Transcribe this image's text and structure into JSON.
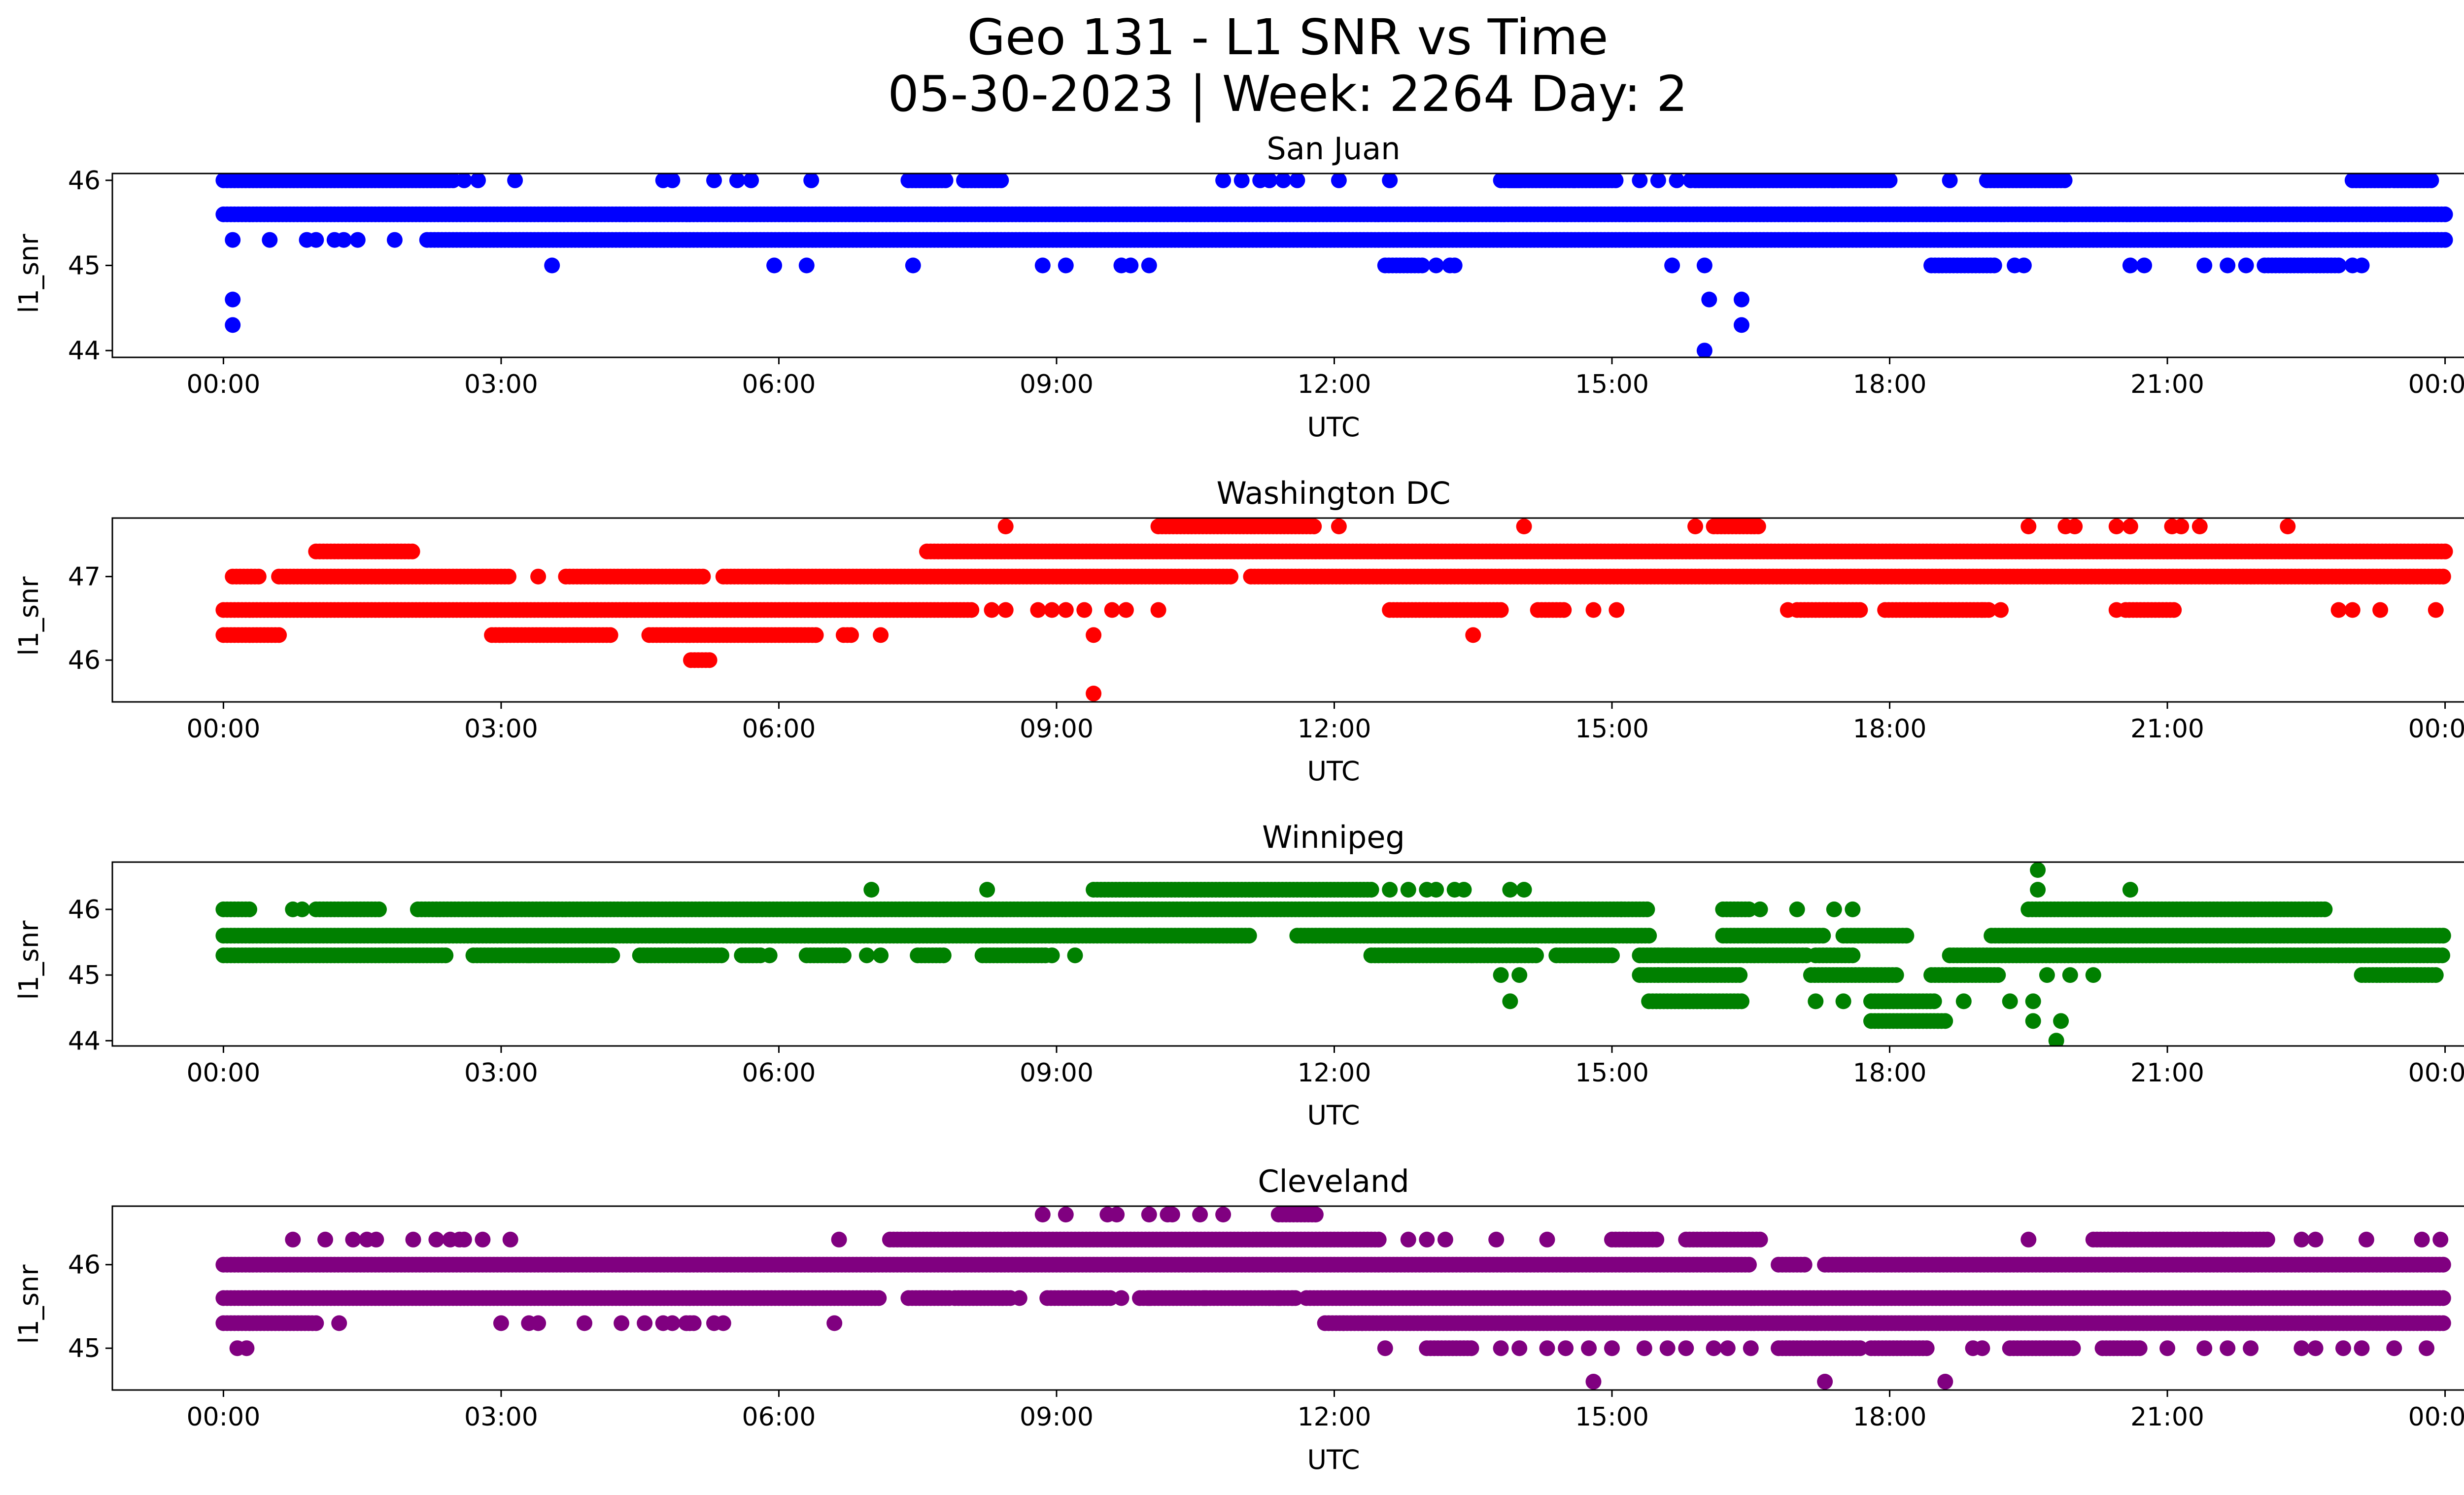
{
  "figure": {
    "title_line1": "Geo 131 - L1 SNR vs Time",
    "title_line2": "05-30-2023 | Week: 2264 Day: 2"
  },
  "chart_data": [
    {
      "type": "scatter",
      "title": "San Juan",
      "xlabel": "UTC",
      "ylabel": "l1_snr",
      "color": "#0000ff",
      "x_unit": "hours UTC (0-24)",
      "xlim": [
        -1.2,
        25.2
      ],
      "ylim": [
        43.92,
        46.08
      ],
      "xticks": [
        0,
        3,
        6,
        9,
        12,
        15,
        18,
        21,
        24
      ],
      "xtick_labels": [
        "00:00",
        "03:00",
        "06:00",
        "09:00",
        "12:00",
        "15:00",
        "18:00",
        "21:00",
        "00:00"
      ],
      "yticks": [
        44,
        45,
        46
      ],
      "ytick_labels": [
        "44",
        "45",
        "46"
      ],
      "series": [
        {
          "y": 45.6,
          "segments": [
            [
              0,
              24
            ]
          ],
          "isolated": []
        },
        {
          "y": 45.3,
          "segments": [
            [
              2.2,
              24
            ]
          ],
          "isolated": [
            0.1,
            0.5,
            0.9,
            1.0,
            1.2,
            1.3,
            1.45,
            1.85
          ]
        },
        {
          "y": 46.0,
          "segments": [
            [
              0,
              2.5
            ],
            [
              7.4,
              7.8
            ],
            [
              8.0,
              8.4
            ],
            [
              13.8,
              14.0
            ],
            [
              13.9,
              14.6
            ],
            [
              14.6,
              15.05
            ],
            [
              15.9,
              17.4
            ],
            [
              17.4,
              18.0
            ],
            [
              19.05,
              19.9
            ],
            [
              23.0,
              23.4
            ],
            [
              23.45,
              23.85
            ]
          ],
          "isolated": [
            2.6,
            2.75,
            3.15,
            4.75,
            4.85,
            5.3,
            5.55,
            5.7,
            6.35,
            10.8,
            11.0,
            11.2,
            11.3,
            11.45,
            11.6,
            12.05,
            12.6,
            15.3,
            15.5,
            15.7,
            15.85,
            18.65
          ]
        },
        {
          "y": 45.0,
          "segments": [
            [
              12.55,
              12.95
            ],
            [
              18.45,
              19.15
            ],
            [
              22.05,
              22.85
            ]
          ],
          "isolated": [
            3.55,
            5.95,
            6.3,
            7.45,
            8.85,
            9.1,
            9.7,
            9.8,
            10.0,
            13.1,
            13.25,
            13.3,
            15.65,
            16.0,
            19.35,
            19.45,
            20.6,
            20.75,
            21.4,
            21.65,
            21.85,
            22.45,
            23.0,
            23.1
          ]
        },
        {
          "y": 44.6,
          "segments": [],
          "isolated": [
            0.1,
            16.05,
            16.4
          ]
        },
        {
          "y": 44.3,
          "segments": [],
          "isolated": [
            0.1,
            16.4
          ]
        },
        {
          "y": 44.0,
          "segments": [],
          "isolated": [
            16.0
          ]
        }
      ]
    },
    {
      "type": "scatter",
      "title": "Washington DC",
      "xlabel": "UTC",
      "ylabel": "l1_snr",
      "color": "#ff0000",
      "x_unit": "hours UTC (0-24)",
      "xlim": [
        -1.2,
        25.2
      ],
      "ylim": [
        45.5,
        47.7
      ],
      "xticks": [
        0,
        3,
        6,
        9,
        12,
        15,
        18,
        21,
        24
      ],
      "xtick_labels": [
        "00:00",
        "03:00",
        "06:00",
        "09:00",
        "12:00",
        "15:00",
        "18:00",
        "21:00",
        "00:00"
      ],
      "yticks": [
        46,
        47
      ],
      "ytick_labels": [
        "46",
        "47"
      ],
      "series": [
        {
          "y": 46.6,
          "segments": [
            [
              0,
              8.1
            ],
            [
              12.6,
              13.8
            ],
            [
              14.2,
              14.5
            ],
            [
              17.0,
              17.7
            ],
            [
              17.95,
              19.1
            ],
            [
              20.55,
              21.1
            ]
          ],
          "isolated": [
            8.3,
            8.45,
            8.8,
            8.95,
            9.1,
            9.3,
            9.6,
            9.75,
            10.1,
            14.8,
            15.05,
            16.9,
            19.0,
            19.2,
            20.45,
            22.85,
            23.0,
            23.3,
            23.9
          ]
        },
        {
          "y": 47.0,
          "segments": [
            [
              0.1,
              0.4
            ],
            [
              0.6,
              3.1
            ],
            [
              3.7,
              5.2
            ],
            [
              5.4,
              6.0
            ],
            [
              6.0,
              10.9
            ],
            [
              11.1,
              24
            ]
          ],
          "isolated": [
            3.4,
            6.1
          ]
        },
        {
          "y": 46.3,
          "segments": [
            [
              0,
              0.6
            ],
            [
              2.9,
              4.2
            ],
            [
              4.6,
              6.4
            ],
            [
              6.7,
              6.8
            ]
          ],
          "isolated": [
            7.1,
            9.4,
            13.5
          ]
        },
        {
          "y": 47.3,
          "segments": [
            [
              1.0,
              2.05
            ],
            [
              7.6,
              24
            ]
          ],
          "isolated": []
        },
        {
          "y": 47.6,
          "segments": [
            [
              10.1,
              11.8
            ],
            [
              16.1,
              16.6
            ]
          ],
          "isolated": [
            8.45,
            12.05,
            14.05,
            15.9,
            19.5,
            19.9,
            20.0,
            20.45,
            20.6,
            21.05,
            21.15,
            21.35,
            22.3
          ]
        },
        {
          "y": 46.0,
          "segments": [
            [
              5.05,
              5.25
            ]
          ],
          "isolated": []
        },
        {
          "y": 45.6,
          "segments": [],
          "isolated": [
            9.4
          ]
        }
      ]
    },
    {
      "type": "scatter",
      "title": "Winnipeg",
      "xlabel": "UTC",
      "ylabel": "l1_snr",
      "color": "#008000",
      "x_unit": "hours UTC (0-24)",
      "xlim": [
        -1.2,
        25.2
      ],
      "ylim": [
        43.92,
        46.72
      ],
      "xticks": [
        0,
        3,
        6,
        9,
        12,
        15,
        18,
        21,
        24
      ],
      "xtick_labels": [
        "00:00",
        "03:00",
        "06:00",
        "09:00",
        "12:00",
        "15:00",
        "18:00",
        "21:00",
        "00:00"
      ],
      "yticks": [
        44,
        45,
        46
      ],
      "ytick_labels": [
        "44",
        "45",
        "46"
      ],
      "series": [
        {
          "y": 45.6,
          "segments": [
            [
              0,
              10.0
            ],
            [
              10.0,
              11.1
            ],
            [
              11.6,
              15.4
            ],
            [
              16.2,
              17.3
            ],
            [
              17.5,
              18.2
            ],
            [
              19.1,
              24
            ]
          ],
          "isolated": []
        },
        {
          "y": 45.3,
          "segments": [
            [
              0,
              2.4
            ],
            [
              2.7,
              3.0
            ],
            [
              3.0,
              4.2
            ],
            [
              4.5,
              5.4
            ],
            [
              5.6,
              5.8
            ],
            [
              6.3,
              6.7
            ],
            [
              7.5,
              7.8
            ],
            [
              8.2,
              8.9
            ],
            [
              12.4,
              13.5
            ],
            [
              13.5,
              14.2
            ],
            [
              14.4,
              15.0
            ],
            [
              15.3,
              17.1
            ],
            [
              17.2,
              17.6
            ],
            [
              18.65,
              24
            ]
          ],
          "isolated": [
            3.3,
            4.1,
            5.9,
            6.95,
            7.1,
            8.95,
            9.2,
            15.6,
            22.85
          ]
        },
        {
          "y": 46.0,
          "segments": [
            [
              0,
              0.3
            ],
            [
              1.0,
              1.7
            ],
            [
              2.1,
              15.4
            ],
            [
              16.2,
              16.5
            ],
            [
              19.5,
              22.7
            ]
          ],
          "isolated": [
            0.75,
            0.85,
            15.1,
            16.6,
            17.0,
            17.4,
            17.6
          ]
        },
        {
          "y": 45.0,
          "segments": [
            [
              15.3,
              16.4
            ],
            [
              17.15,
              18.1
            ],
            [
              18.45,
              19.2
            ],
            [
              23.1,
              23.9
            ]
          ],
          "isolated": [
            13.8,
            14.0,
            15.5,
            18.7,
            19.7,
            19.95,
            20.2
          ]
        },
        {
          "y": 44.6,
          "segments": [
            [
              15.4,
              16.4
            ],
            [
              17.8,
              18.5
            ]
          ],
          "isolated": [
            13.9,
            17.2,
            17.5,
            18.8,
            19.3,
            19.55
          ]
        },
        {
          "y": 46.3,
          "segments": [
            [
              9.4,
              12.4
            ]
          ],
          "isolated": [
            7.0,
            8.25,
            12.6,
            12.8,
            13.0,
            13.1,
            13.3,
            13.4,
            13.9,
            14.05,
            19.6,
            20.6
          ]
        },
        {
          "y": 44.3,
          "segments": [
            [
              17.8,
              18.6
            ]
          ],
          "isolated": [
            19.55,
            19.85
          ]
        },
        {
          "y": 46.6,
          "segments": [],
          "isolated": [
            19.6
          ]
        },
        {
          "y": 44.0,
          "segments": [],
          "isolated": [
            19.8
          ]
        }
      ]
    },
    {
      "type": "scatter",
      "title": "Cleveland",
      "xlabel": "UTC",
      "ylabel": "l1_snr",
      "color": "#800080",
      "x_unit": "hours UTC (0-24)",
      "xlim": [
        -1.2,
        25.2
      ],
      "ylim": [
        44.5,
        46.7
      ],
      "xticks": [
        0,
        3,
        6,
        9,
        12,
        15,
        18,
        21,
        24
      ],
      "xtick_labels": [
        "00:00",
        "03:00",
        "06:00",
        "09:00",
        "12:00",
        "15:00",
        "18:00",
        "21:00",
        "00:00"
      ],
      "yticks": [
        45,
        46
      ],
      "ytick_labels": [
        "45",
        "46"
      ],
      "series": [
        {
          "y": 46.0,
          "segments": [
            [
              0,
              7.0
            ],
            [
              7.0,
              16.5
            ],
            [
              16.8,
              17.1
            ],
            [
              17.3,
              24
            ]
          ],
          "isolated": []
        },
        {
          "y": 45.6,
          "segments": [
            [
              0,
              7.1
            ],
            [
              7.4,
              7.85
            ],
            [
              7.9,
              8.5
            ],
            [
              8.9,
              9.6
            ],
            [
              9.9,
              11.6
            ],
            [
              11.7,
              24
            ]
          ],
          "isolated": [
            8.6,
            9.7,
            10.0,
            10.5,
            10.6,
            11.3,
            11.4,
            11.55
          ]
        },
        {
          "y": 45.3,
          "segments": [
            [
              0,
              1.0
            ],
            [
              5.0,
              5.1
            ],
            [
              11.9,
              24
            ]
          ],
          "isolated": [
            1.25,
            3.0,
            3.3,
            3.4,
            3.9,
            4.3,
            4.55,
            4.75,
            4.85,
            5.3,
            5.4,
            6.6,
            12.1,
            12.3
          ]
        },
        {
          "y": 45.0,
          "segments": [
            [
              13.0,
              13.5
            ],
            [
              16.8,
              17.7
            ],
            [
              17.8,
              18.4
            ],
            [
              19.3,
              20.0
            ],
            [
              20.3,
              20.7
            ]
          ],
          "isolated": [
            0.15,
            0.25,
            12.55,
            13.8,
            14.0,
            14.3,
            14.5,
            14.75,
            15.0,
            15.35,
            15.6,
            15.8,
            16.1,
            16.25,
            16.5,
            18.9,
            19.0,
            21.0,
            21.4,
            21.65,
            21.9,
            22.45,
            22.6,
            22.9,
            23.1,
            23.45,
            23.8
          ]
        },
        {
          "y": 46.3,
          "segments": [
            [
              7.2,
              12.5
            ],
            [
              15.0,
              15.5
            ],
            [
              15.8,
              16.6
            ],
            [
              20.2,
              21.6
            ],
            [
              21.6,
              22.1
            ]
          ],
          "isolated": [
            0.75,
            1.1,
            1.4,
            1.55,
            1.65,
            2.05,
            2.3,
            2.45,
            2.6,
            2.55,
            2.8,
            3.1,
            6.65,
            12.8,
            13.0,
            13.2,
            13.75,
            14.3,
            19.5,
            22.45,
            22.6,
            23.15,
            23.75,
            23.95
          ]
        },
        {
          "y": 46.6,
          "segments": [
            [
              11.4,
              11.8
            ]
          ],
          "isolated": [
            8.85,
            9.1,
            9.55,
            9.65,
            10.0,
            10.2,
            10.25,
            10.55,
            10.8
          ]
        },
        {
          "y": 44.6,
          "segments": [],
          "isolated": [
            14.8,
            17.3,
            18.6
          ]
        }
      ]
    }
  ]
}
